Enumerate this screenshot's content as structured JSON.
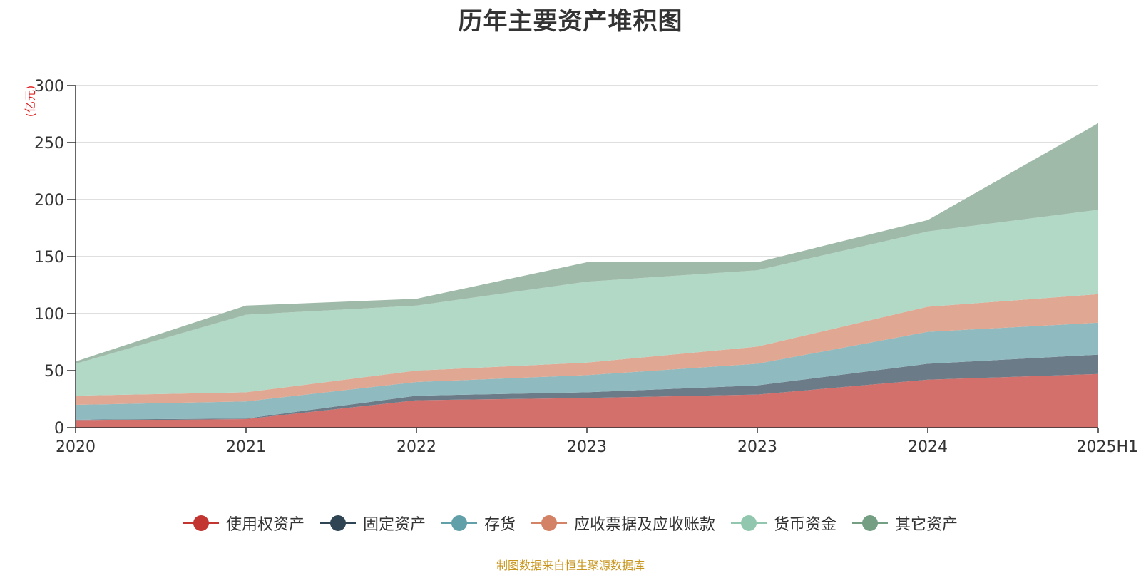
{
  "chart_data": {
    "type": "area",
    "stacked": true,
    "title": "历年主要资产堆积图",
    "ylabel": "(亿元)",
    "xlabel": "",
    "categories": [
      "2020",
      "2021",
      "2022",
      "2023",
      "2023",
      "2024",
      "2025H1"
    ],
    "ylim": [
      0,
      300
    ],
    "yticks": [
      0,
      50,
      100,
      150,
      200,
      250,
      300
    ],
    "grid": true,
    "legend_position": "bottom",
    "series": [
      {
        "name": "使用权资产",
        "color": "#c23531",
        "fill": "#d4706c",
        "values": [
          6,
          7.5,
          24,
          26,
          29,
          42,
          47
        ]
      },
      {
        "name": "固定资产",
        "color": "#2f4554",
        "fill": "#6b7c88",
        "values": [
          1,
          0.5,
          4,
          5,
          8,
          14,
          17
        ]
      },
      {
        "name": "存货",
        "color": "#61a0a8",
        "fill": "#8fbac0",
        "values": [
          13,
          15,
          12,
          15,
          19,
          28,
          28
        ]
      },
      {
        "name": "应收票据及应收账款",
        "color": "#d48265",
        "fill": "#e0a893",
        "values": [
          8,
          8,
          10,
          11,
          15,
          22,
          25
        ]
      },
      {
        "name": "货币资金",
        "color": "#91c7ae",
        "fill": "#b2d8c6",
        "values": [
          28,
          68,
          57,
          71,
          67,
          66,
          74
        ]
      },
      {
        "name": "其它资产",
        "color": "#749f83",
        "fill": "#9fbaa8",
        "values": [
          2,
          8,
          6,
          17,
          7,
          10,
          76
        ]
      }
    ]
  },
  "source_note": "制图数据来自恒生聚源数据库"
}
